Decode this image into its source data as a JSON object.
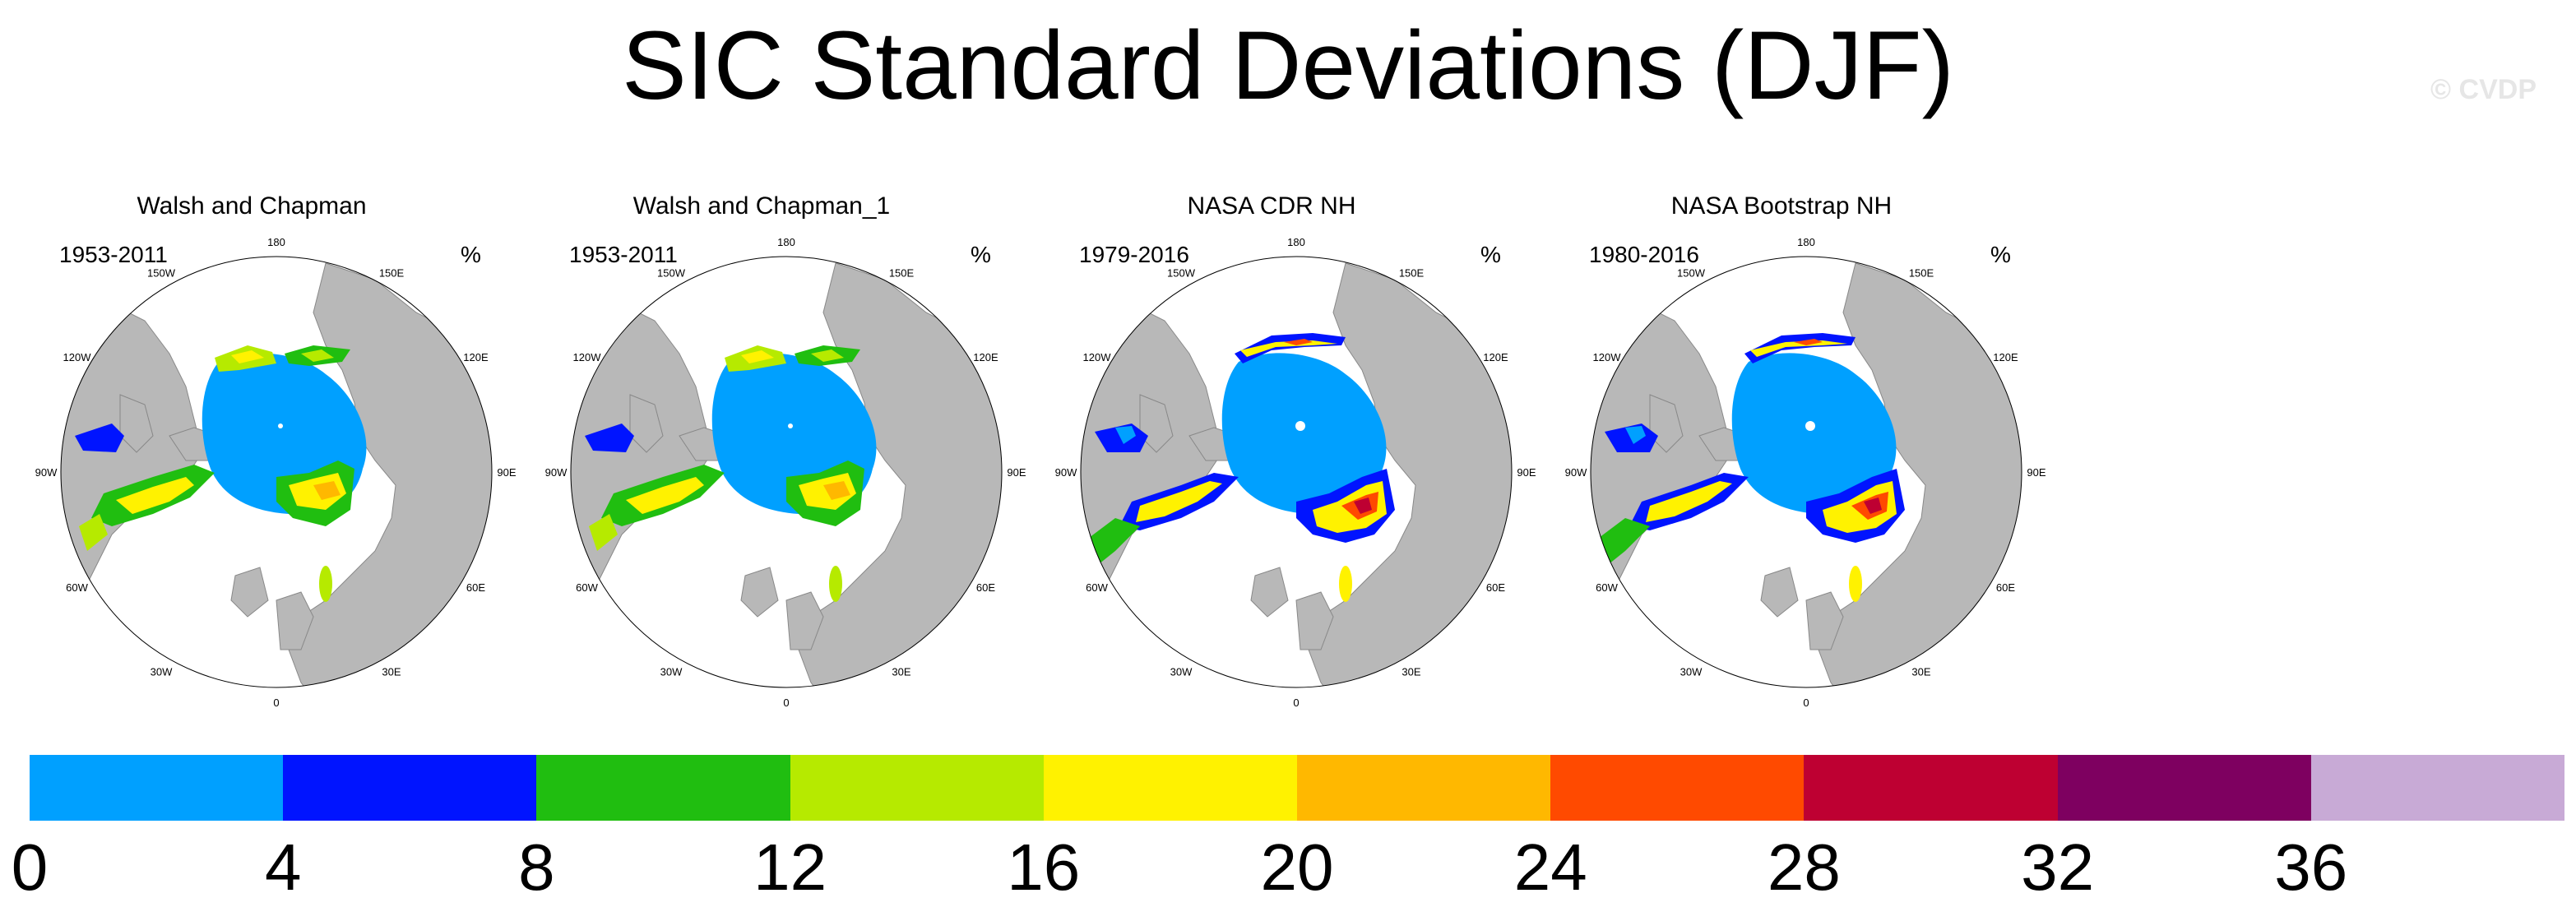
{
  "title": "SIC Standard Deviations (DJF)",
  "watermark": "© CVDP",
  "panels": [
    {
      "name": "Walsh and Chapman",
      "period": "1953-2011",
      "unit": "%",
      "style": "coarse"
    },
    {
      "name": "Walsh and Chapman_1",
      "period": "1953-2011",
      "unit": "%",
      "style": "coarse"
    },
    {
      "name": "NASA CDR NH",
      "period": "1979-2016",
      "unit": "%",
      "style": "fine"
    },
    {
      "name": "NASA Bootstrap NH",
      "period": "1980-2016",
      "unit": "%",
      "style": "fine"
    }
  ],
  "lon_labels": [
    "180",
    "150E",
    "120E",
    "90E",
    "60E",
    "30E",
    "0",
    "30W",
    "60W",
    "90W",
    "120W",
    "150W"
  ],
  "colorbar": {
    "colors": [
      "#00a0ff",
      "#0014ff",
      "#20be10",
      "#b6ea00",
      "#fff200",
      "#ffb800",
      "#ff4a00",
      "#be0032",
      "#7e0060",
      "#c8aad6"
    ],
    "tick_labels": [
      "0",
      "4",
      "8",
      "12",
      "16",
      "20",
      "24",
      "28",
      "32",
      "36"
    ]
  },
  "colors": {
    "land": "#b8b8b8",
    "ocean": "#ffffff",
    "arctic_ice": "#00a0ff"
  }
}
